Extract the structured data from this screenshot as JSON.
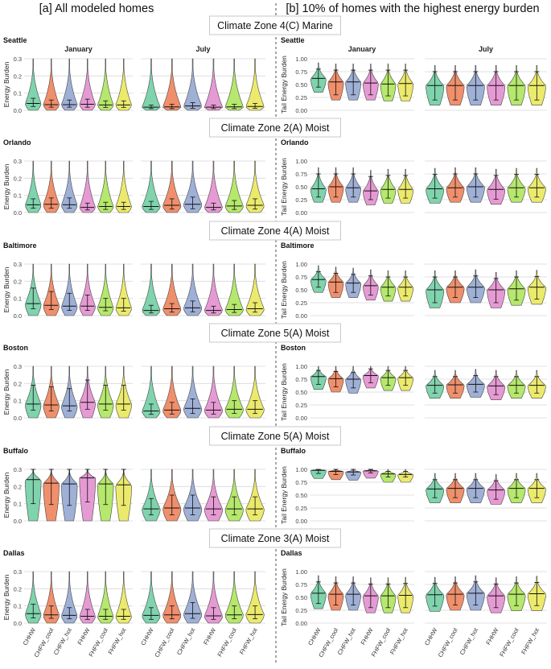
{
  "titles": {
    "left": "[a] All modeled homes",
    "right": "[b] 10% of homes with the highest energy burden"
  },
  "months": [
    "January",
    "July"
  ],
  "categories": [
    "CHHW",
    "CHFW_cool",
    "CHFW_hot",
    "FHHW",
    "FHFW_cool",
    "FHFW_hot"
  ],
  "colors": [
    "#7fd3ad",
    "#f08f6c",
    "#9fb0d6",
    "#e69ad4",
    "#b5e86c",
    "#ecea6c"
  ],
  "ylabels": {
    "left": "Energy Burden",
    "right": "Tail Energy Burden"
  },
  "left_ticks": [
    "0.0",
    "0.1",
    "0.2",
    "0.3"
  ],
  "right_ticks": [
    "0.00",
    "0.25",
    "0.50",
    "0.75",
    "1.00"
  ],
  "chart_data": {
    "type": "violin",
    "ylim_all": [
      0,
      0.3
    ],
    "ylim_tail": [
      0,
      1.0
    ],
    "rows": [
      {
        "zone": "Climate Zone 4(C) Marine",
        "city": "Seattle",
        "all": {
          "January": {
            "median": [
              0.04,
              0.033,
              0.033,
              0.035,
              0.031,
              0.031
            ],
            "lo": [
              0.022,
              0.018,
              0.018,
              0.018,
              0.017,
              0.017
            ],
            "hi": [
              0.07,
              0.06,
              0.06,
              0.065,
              0.055,
              0.055
            ]
          },
          "July": {
            "median": [
              0.018,
              0.02,
              0.025,
              0.018,
              0.02,
              0.022
            ],
            "lo": [
              0.01,
              0.01,
              0.012,
              0.01,
              0.01,
              0.011
            ],
            "hi": [
              0.03,
              0.035,
              0.045,
              0.03,
              0.035,
              0.04
            ]
          }
        },
        "tail": {
          "January": {
            "median": [
              0.62,
              0.55,
              0.55,
              0.53,
              0.51,
              0.52
            ],
            "lo": [
              0.45,
              0.3,
              0.3,
              0.3,
              0.28,
              0.28
            ],
            "hi": [
              0.8,
              0.78,
              0.78,
              0.78,
              0.78,
              0.78
            ]
          },
          "July": {
            "median": [
              0.48,
              0.48,
              0.48,
              0.48,
              0.48,
              0.48
            ],
            "lo": [
              0.2,
              0.2,
              0.2,
              0.2,
              0.2,
              0.2
            ],
            "hi": [
              0.75,
              0.75,
              0.75,
              0.75,
              0.75,
              0.75
            ]
          }
        }
      },
      {
        "zone": "Climate Zone 2(A) Moist",
        "city": "Orlando",
        "all": {
          "January": {
            "median": [
              0.045,
              0.048,
              0.045,
              0.03,
              0.035,
              0.035
            ],
            "lo": [
              0.025,
              0.025,
              0.025,
              0.015,
              0.018,
              0.018
            ],
            "hi": [
              0.08,
              0.085,
              0.085,
              0.055,
              0.06,
              0.06
            ]
          },
          "July": {
            "median": [
              0.035,
              0.042,
              0.048,
              0.03,
              0.038,
              0.042
            ],
            "lo": [
              0.018,
              0.02,
              0.022,
              0.015,
              0.018,
              0.02
            ],
            "hi": [
              0.065,
              0.08,
              0.09,
              0.055,
              0.07,
              0.08
            ]
          }
        },
        "tail": {
          "January": {
            "median": [
              0.46,
              0.5,
              0.48,
              0.42,
              0.45,
              0.45
            ],
            "lo": [
              0.3,
              0.3,
              0.3,
              0.25,
              0.28,
              0.28
            ],
            "hi": [
              0.75,
              0.75,
              0.75,
              0.7,
              0.72,
              0.72
            ]
          },
          "July": {
            "median": [
              0.46,
              0.48,
              0.5,
              0.45,
              0.48,
              0.48
            ],
            "lo": [
              0.28,
              0.3,
              0.3,
              0.26,
              0.3,
              0.3
            ],
            "hi": [
              0.74,
              0.75,
              0.75,
              0.72,
              0.74,
              0.74
            ]
          }
        }
      },
      {
        "zone": "Climate Zone 4(A) Moist",
        "city": "Baltimore",
        "all": {
          "January": {
            "median": [
              0.07,
              0.06,
              0.055,
              0.055,
              0.048,
              0.045
            ],
            "lo": [
              0.04,
              0.035,
              0.03,
              0.03,
              0.028,
              0.026
            ],
            "hi": [
              0.16,
              0.14,
              0.13,
              0.12,
              0.1,
              0.1
            ]
          },
          "July": {
            "median": [
              0.03,
              0.04,
              0.045,
              0.03,
              0.035,
              0.04
            ],
            "lo": [
              0.015,
              0.02,
              0.022,
              0.015,
              0.018,
              0.02
            ],
            "hi": [
              0.06,
              0.07,
              0.085,
              0.055,
              0.065,
              0.075
            ]
          }
        },
        "tail": {
          "January": {
            "median": [
              0.7,
              0.65,
              0.63,
              0.58,
              0.55,
              0.55
            ],
            "lo": [
              0.55,
              0.45,
              0.45,
              0.4,
              0.38,
              0.38
            ],
            "hi": [
              0.85,
              0.82,
              0.8,
              0.77,
              0.75,
              0.75
            ]
          },
          "July": {
            "median": [
              0.5,
              0.55,
              0.55,
              0.5,
              0.52,
              0.55
            ],
            "lo": [
              0.25,
              0.35,
              0.35,
              0.25,
              0.3,
              0.32
            ],
            "hi": [
              0.75,
              0.75,
              0.77,
              0.72,
              0.75,
              0.76
            ]
          }
        }
      },
      {
        "zone": "Climate Zone 5(A) Moist",
        "city": "Boston",
        "all": {
          "January": {
            "median": [
              0.08,
              0.075,
              0.07,
              0.09,
              0.08,
              0.08
            ],
            "lo": [
              0.045,
              0.04,
              0.04,
              0.05,
              0.045,
              0.045
            ],
            "hi": [
              0.19,
              0.18,
              0.17,
              0.22,
              0.19,
              0.19
            ]
          },
          "July": {
            "median": [
              0.04,
              0.045,
              0.055,
              0.045,
              0.05,
              0.05
            ],
            "lo": [
              0.02,
              0.022,
              0.025,
              0.022,
              0.025,
              0.025
            ],
            "hi": [
              0.08,
              0.09,
              0.11,
              0.09,
              0.1,
              0.1
            ]
          }
        },
        "tail": {
          "January": {
            "median": [
              0.8,
              0.76,
              0.75,
              0.82,
              0.78,
              0.78
            ],
            "lo": [
              0.65,
              0.6,
              0.58,
              0.68,
              0.63,
              0.63
            ],
            "hi": [
              0.92,
              0.9,
              0.88,
              0.95,
              0.92,
              0.92
            ]
          },
          "July": {
            "median": [
              0.63,
              0.64,
              0.65,
              0.62,
              0.63,
              0.63
            ],
            "lo": [
              0.48,
              0.48,
              0.5,
              0.45,
              0.48,
              0.48
            ],
            "hi": [
              0.8,
              0.8,
              0.82,
              0.8,
              0.8,
              0.8
            ]
          }
        }
      },
      {
        "zone": "Climate Zone 5(A) Moist",
        "city": "Buffalo",
        "all": {
          "January": {
            "median": [
              0.24,
              0.22,
              0.215,
              0.25,
              0.215,
              0.21
            ],
            "lo": [
              0.1,
              0.095,
              0.09,
              0.11,
              0.095,
              0.09
            ],
            "hi": [
              0.3,
              0.3,
              0.3,
              0.3,
              0.3,
              0.3
            ]
          },
          "July": {
            "median": [
              0.07,
              0.075,
              0.075,
              0.07,
              0.07,
              0.07
            ],
            "lo": [
              0.035,
              0.035,
              0.035,
              0.035,
              0.035,
              0.035
            ],
            "hi": [
              0.13,
              0.15,
              0.15,
              0.14,
              0.14,
              0.14
            ]
          }
        },
        "tail": {
          "January": {
            "median": [
              0.98,
              0.96,
              0.95,
              0.97,
              0.91,
              0.9
            ],
            "lo": [
              0.92,
              0.9,
              0.89,
              0.93,
              0.85,
              0.85
            ],
            "hi": [
              1.0,
              1.0,
              1.0,
              1.0,
              0.96,
              0.96
            ]
          },
          "July": {
            "median": [
              0.62,
              0.63,
              0.63,
              0.6,
              0.63,
              0.63
            ],
            "lo": [
              0.45,
              0.45,
              0.45,
              0.42,
              0.45,
              0.45
            ],
            "hi": [
              0.8,
              0.8,
              0.8,
              0.78,
              0.8,
              0.8
            ]
          }
        }
      },
      {
        "zone": "Climate Zone 3(A) Moist",
        "city": "Dallas",
        "all": {
          "January": {
            "median": [
              0.055,
              0.048,
              0.045,
              0.04,
              0.04,
              0.04
            ],
            "lo": [
              0.03,
              0.028,
              0.025,
              0.022,
              0.022,
              0.022
            ],
            "hi": [
              0.11,
              0.1,
              0.09,
              0.08,
              0.08,
              0.08
            ]
          },
          "July": {
            "median": [
              0.045,
              0.048,
              0.055,
              0.042,
              0.048,
              0.05
            ],
            "lo": [
              0.022,
              0.025,
              0.028,
              0.022,
              0.025,
              0.025
            ],
            "hi": [
              0.09,
              0.1,
              0.12,
              0.09,
              0.1,
              0.1
            ]
          }
        },
        "tail": {
          "January": {
            "median": [
              0.58,
              0.56,
              0.56,
              0.53,
              0.53,
              0.54
            ],
            "lo": [
              0.38,
              0.35,
              0.35,
              0.3,
              0.3,
              0.3
            ],
            "hi": [
              0.8,
              0.78,
              0.78,
              0.76,
              0.76,
              0.77
            ]
          },
          "July": {
            "median": [
              0.55,
              0.56,
              0.58,
              0.53,
              0.56,
              0.57
            ],
            "lo": [
              0.33,
              0.35,
              0.35,
              0.3,
              0.34,
              0.34
            ],
            "hi": [
              0.77,
              0.78,
              0.8,
              0.76,
              0.78,
              0.79
            ]
          }
        }
      }
    ]
  }
}
